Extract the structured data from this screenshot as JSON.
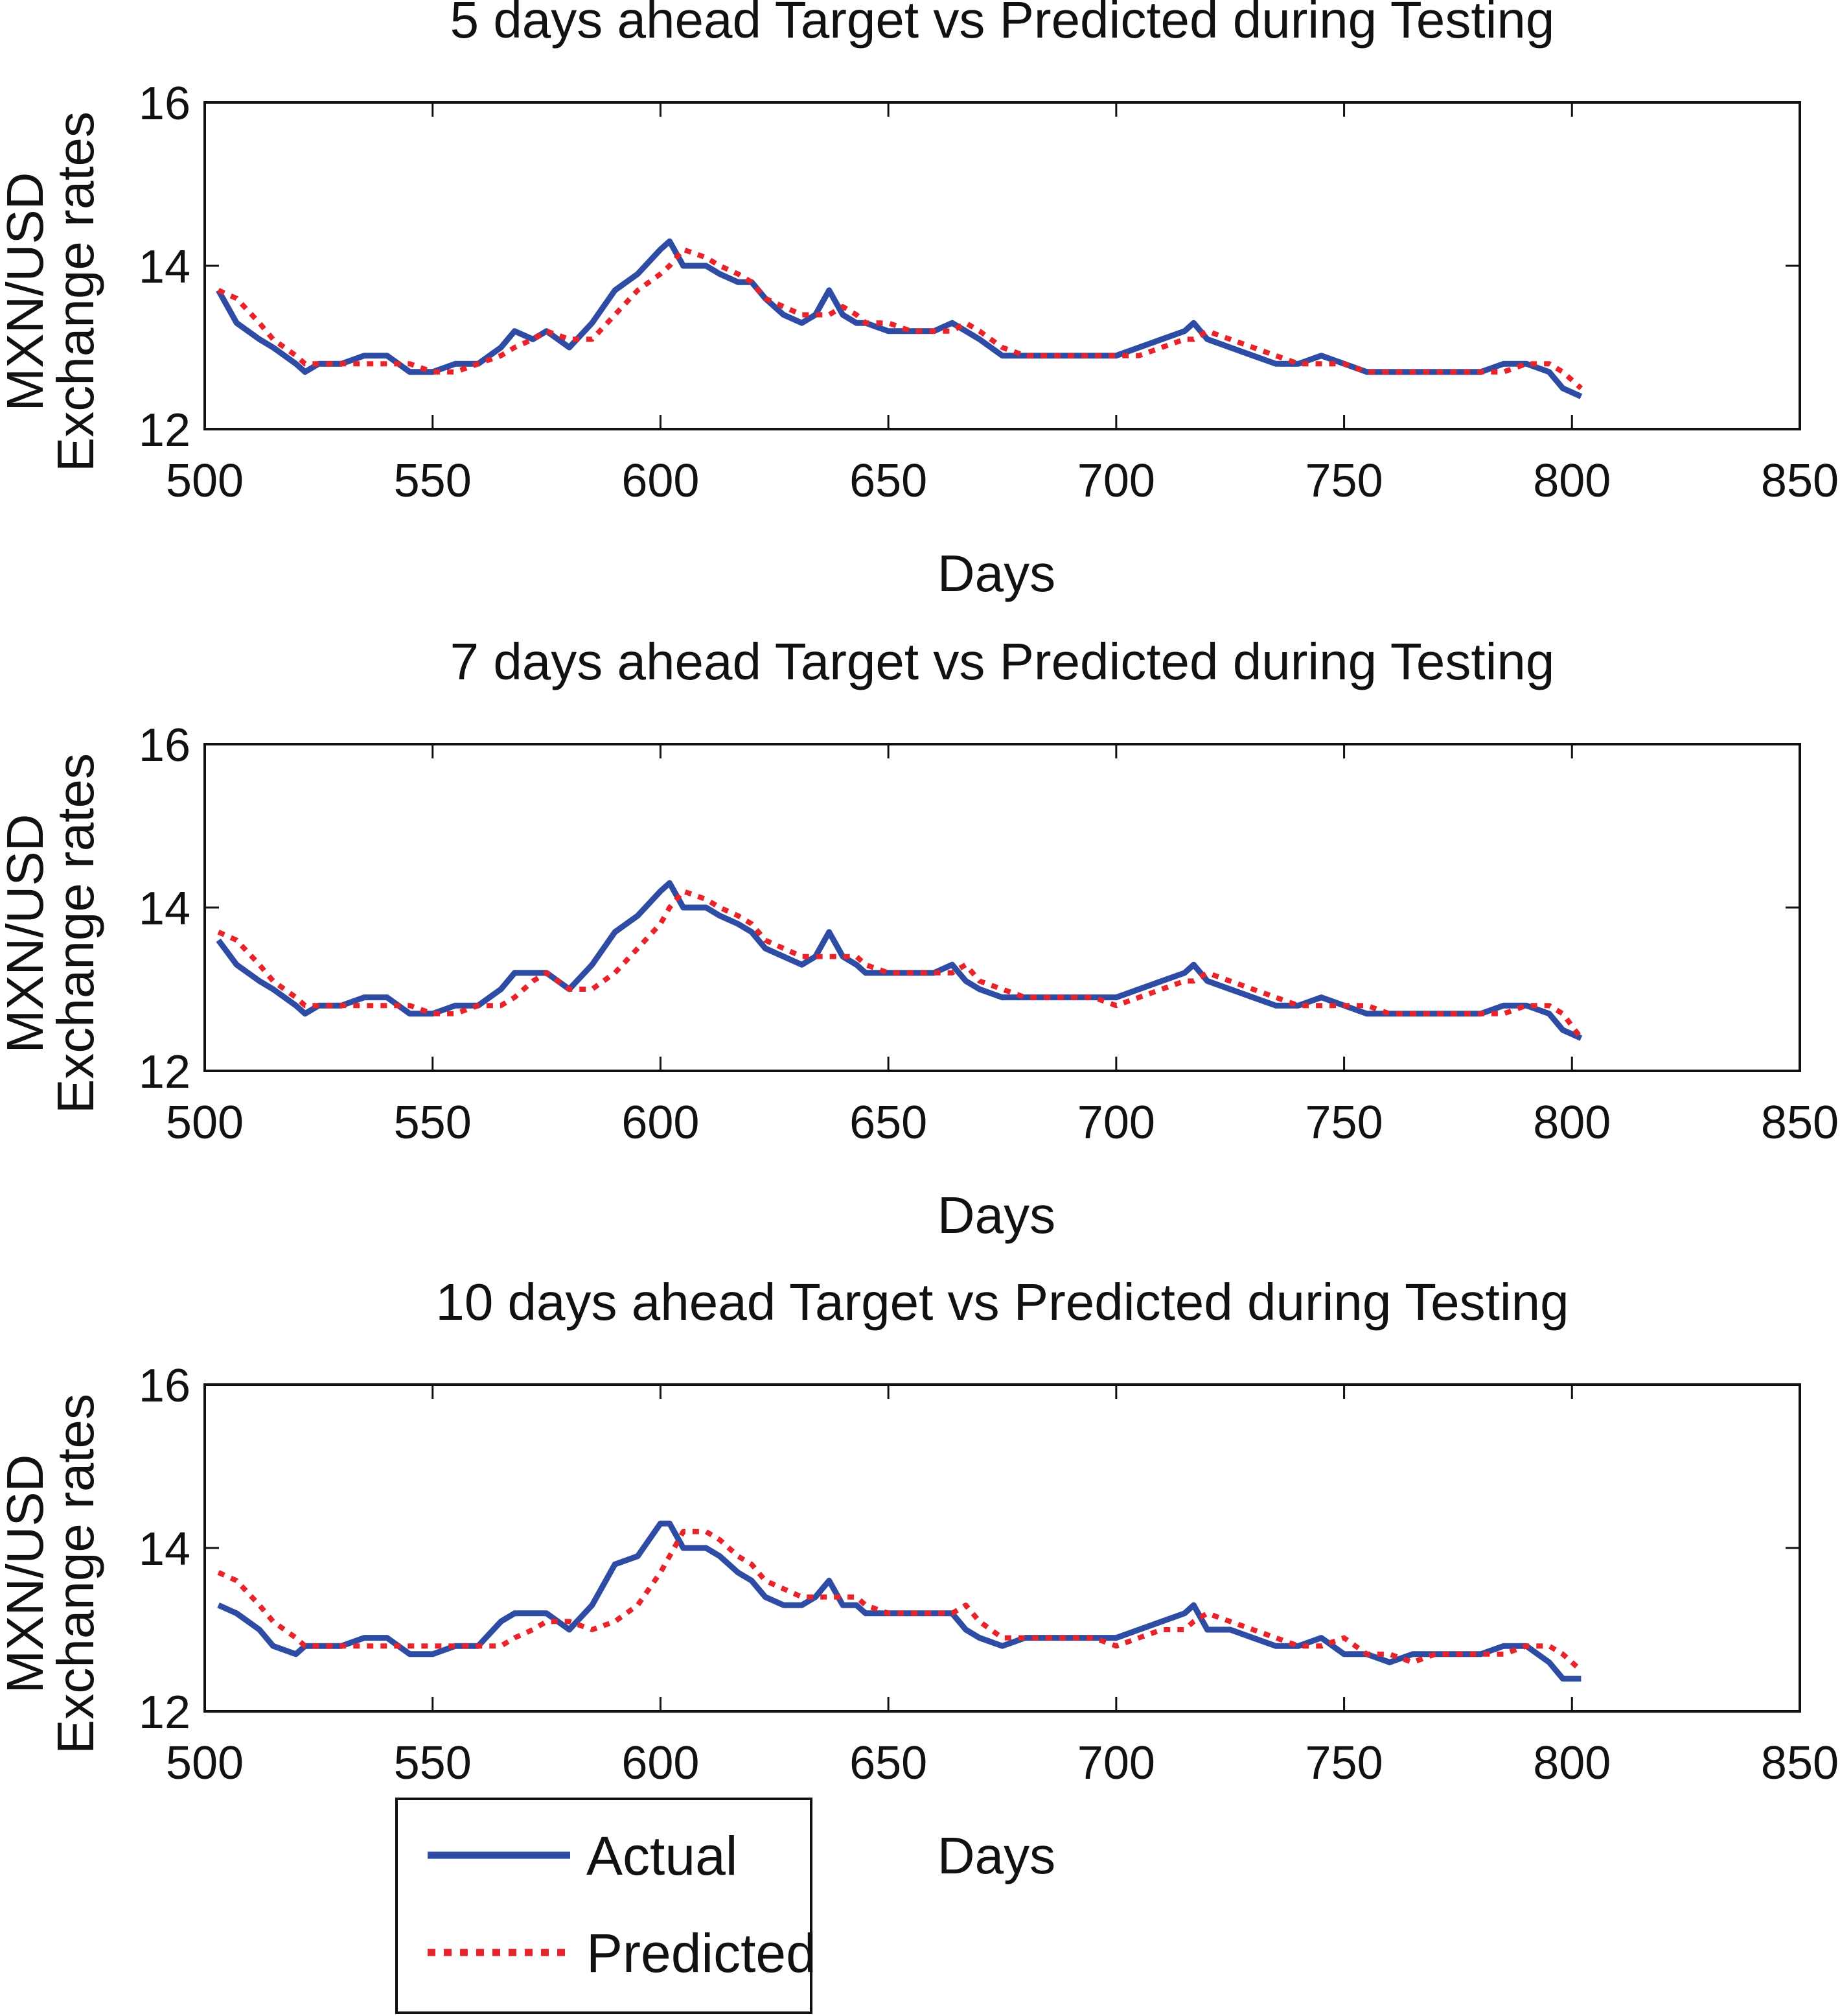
{
  "colors": {
    "actual": "#2E4CA3",
    "predicted": "#E8232A",
    "axes": "#111111"
  },
  "legend": {
    "placement": "bottom-left",
    "items": [
      {
        "label": "Actual",
        "style": "solid"
      },
      {
        "label": "Predicted",
        "style": "dotted"
      }
    ]
  },
  "chart_data": [
    {
      "type": "line",
      "title": "5 days ahead Target vs Predicted during Testing",
      "xlabel": "Days",
      "ylabel": [
        "MXN/USD",
        "Exchange rates"
      ],
      "xlim": [
        500,
        850
      ],
      "ylim": [
        12,
        16
      ],
      "xticks": [
        "500",
        "550",
        "600",
        "650",
        "700",
        "750",
        "800",
        "850"
      ],
      "yticks": [
        "12",
        "14",
        "16"
      ],
      "grid": false,
      "series": [
        {
          "name": "Actual",
          "x": [
            503,
            507,
            512,
            515,
            520,
            522,
            525,
            530,
            535,
            540,
            545,
            550,
            555,
            560,
            565,
            568,
            572,
            575,
            580,
            585,
            590,
            595,
            600,
            602,
            605,
            610,
            613,
            617,
            620,
            623,
            627,
            631,
            634,
            637,
            640,
            643,
            645,
            650,
            655,
            660,
            664,
            667,
            670,
            675,
            680,
            685,
            690,
            695,
            700,
            705,
            710,
            715,
            717,
            720,
            725,
            730,
            735,
            740,
            745,
            750,
            755,
            760,
            765,
            770,
            775,
            780,
            785,
            790,
            795,
            798,
            802
          ],
          "values": [
            13.7,
            13.3,
            13.1,
            13.0,
            12.8,
            12.7,
            12.8,
            12.8,
            12.9,
            12.9,
            12.7,
            12.7,
            12.8,
            12.8,
            13.0,
            13.2,
            13.1,
            13.2,
            13.0,
            13.3,
            13.7,
            13.9,
            14.2,
            14.3,
            14.0,
            14.0,
            13.9,
            13.8,
            13.8,
            13.6,
            13.4,
            13.3,
            13.4,
            13.7,
            13.4,
            13.3,
            13.3,
            13.2,
            13.2,
            13.2,
            13.3,
            13.2,
            13.1,
            12.9,
            12.9,
            12.9,
            12.9,
            12.9,
            12.9,
            13.0,
            13.1,
            13.2,
            13.3,
            13.1,
            13.0,
            12.9,
            12.8,
            12.8,
            12.9,
            12.8,
            12.7,
            12.7,
            12.7,
            12.7,
            12.7,
            12.7,
            12.8,
            12.8,
            12.7,
            12.5,
            12.4
          ]
        },
        {
          "name": "Predicted",
          "x": [
            503,
            507,
            512,
            515,
            520,
            522,
            525,
            530,
            535,
            540,
            545,
            550,
            555,
            560,
            565,
            568,
            572,
            575,
            580,
            585,
            590,
            595,
            600,
            602,
            605,
            610,
            613,
            617,
            620,
            623,
            627,
            631,
            634,
            637,
            640,
            643,
            645,
            650,
            655,
            660,
            664,
            667,
            670,
            675,
            680,
            685,
            690,
            695,
            700,
            705,
            710,
            715,
            717,
            720,
            725,
            730,
            735,
            740,
            745,
            750,
            755,
            760,
            765,
            770,
            775,
            780,
            785,
            790,
            795,
            798,
            802
          ],
          "values": [
            13.7,
            13.6,
            13.3,
            13.1,
            12.9,
            12.8,
            12.8,
            12.8,
            12.8,
            12.8,
            12.8,
            12.7,
            12.7,
            12.8,
            12.9,
            13.0,
            13.1,
            13.2,
            13.1,
            13.1,
            13.4,
            13.7,
            13.9,
            14.0,
            14.2,
            14.1,
            14.0,
            13.9,
            13.8,
            13.6,
            13.5,
            13.4,
            13.4,
            13.4,
            13.5,
            13.4,
            13.3,
            13.3,
            13.2,
            13.2,
            13.2,
            13.3,
            13.2,
            13.0,
            12.9,
            12.9,
            12.9,
            12.9,
            12.9,
            12.9,
            13.0,
            13.1,
            13.1,
            13.2,
            13.1,
            13.0,
            12.9,
            12.8,
            12.8,
            12.8,
            12.7,
            12.7,
            12.7,
            12.7,
            12.7,
            12.7,
            12.7,
            12.8,
            12.8,
            12.7,
            12.5
          ]
        }
      ]
    },
    {
      "type": "line",
      "title": "7 days ahead Target vs Predicted during Testing",
      "xlabel": "Days",
      "ylabel": [
        "MXN/USD",
        "Exchange rates"
      ],
      "xlim": [
        500,
        850
      ],
      "ylim": [
        12,
        16
      ],
      "xticks": [
        "500",
        "550",
        "600",
        "650",
        "700",
        "750",
        "800",
        "850"
      ],
      "yticks": [
        "12",
        "14",
        "16"
      ],
      "grid": false,
      "series": [
        {
          "name": "Actual",
          "x": [
            503,
            507,
            512,
            515,
            520,
            522,
            525,
            530,
            535,
            540,
            545,
            550,
            555,
            560,
            565,
            568,
            572,
            575,
            580,
            585,
            590,
            595,
            600,
            602,
            605,
            610,
            613,
            617,
            620,
            623,
            627,
            631,
            634,
            637,
            640,
            643,
            645,
            650,
            655,
            660,
            664,
            667,
            670,
            675,
            680,
            685,
            690,
            695,
            700,
            705,
            710,
            715,
            717,
            720,
            725,
            730,
            735,
            740,
            745,
            750,
            755,
            760,
            765,
            770,
            775,
            780,
            785,
            790,
            795,
            798,
            802
          ],
          "values": [
            13.6,
            13.3,
            13.1,
            13.0,
            12.8,
            12.7,
            12.8,
            12.8,
            12.9,
            12.9,
            12.7,
            12.7,
            12.8,
            12.8,
            13.0,
            13.2,
            13.2,
            13.2,
            13.0,
            13.3,
            13.7,
            13.9,
            14.2,
            14.3,
            14.0,
            14.0,
            13.9,
            13.8,
            13.7,
            13.5,
            13.4,
            13.3,
            13.4,
            13.7,
            13.4,
            13.3,
            13.2,
            13.2,
            13.2,
            13.2,
            13.3,
            13.1,
            13.0,
            12.9,
            12.9,
            12.9,
            12.9,
            12.9,
            12.9,
            13.0,
            13.1,
            13.2,
            13.3,
            13.1,
            13.0,
            12.9,
            12.8,
            12.8,
            12.9,
            12.8,
            12.7,
            12.7,
            12.7,
            12.7,
            12.7,
            12.7,
            12.8,
            12.8,
            12.7,
            12.5,
            12.4
          ]
        },
        {
          "name": "Predicted",
          "x": [
            503,
            507,
            512,
            515,
            520,
            522,
            525,
            530,
            535,
            540,
            545,
            550,
            555,
            560,
            565,
            568,
            572,
            575,
            580,
            585,
            590,
            595,
            600,
            602,
            605,
            610,
            613,
            617,
            620,
            623,
            627,
            631,
            634,
            637,
            640,
            643,
            645,
            650,
            655,
            660,
            664,
            667,
            670,
            675,
            680,
            685,
            690,
            695,
            700,
            705,
            710,
            715,
            717,
            720,
            725,
            730,
            735,
            740,
            745,
            750,
            755,
            760,
            765,
            770,
            775,
            780,
            785,
            790,
            795,
            798,
            802
          ],
          "values": [
            13.7,
            13.6,
            13.3,
            13.1,
            12.9,
            12.8,
            12.8,
            12.8,
            12.8,
            12.8,
            12.8,
            12.7,
            12.7,
            12.8,
            12.8,
            12.9,
            13.1,
            13.2,
            13.0,
            13.0,
            13.2,
            13.5,
            13.8,
            14.0,
            14.2,
            14.1,
            14.0,
            13.9,
            13.8,
            13.6,
            13.5,
            13.4,
            13.4,
            13.4,
            13.4,
            13.4,
            13.3,
            13.2,
            13.2,
            13.2,
            13.2,
            13.3,
            13.1,
            13.0,
            12.9,
            12.9,
            12.9,
            12.9,
            12.8,
            12.9,
            13.0,
            13.1,
            13.1,
            13.2,
            13.1,
            13.0,
            12.9,
            12.8,
            12.8,
            12.8,
            12.8,
            12.7,
            12.7,
            12.7,
            12.7,
            12.7,
            12.7,
            12.8,
            12.8,
            12.7,
            12.4
          ]
        }
      ]
    },
    {
      "type": "line",
      "title": "10 days ahead  Target vs Predicted during Testing",
      "xlabel": "Days",
      "ylabel": [
        "MXN/USD",
        "Exchange rates"
      ],
      "xlim": [
        500,
        850
      ],
      "ylim": [
        12,
        16
      ],
      "xticks": [
        "500",
        "550",
        "600",
        "650",
        "700",
        "750",
        "800",
        "850"
      ],
      "yticks": [
        "12",
        "14",
        "16"
      ],
      "grid": false,
      "series": [
        {
          "name": "Actual",
          "x": [
            503,
            507,
            512,
            515,
            520,
            522,
            525,
            530,
            535,
            540,
            545,
            550,
            555,
            560,
            565,
            568,
            572,
            575,
            580,
            585,
            590,
            595,
            600,
            602,
            605,
            610,
            613,
            617,
            620,
            623,
            627,
            631,
            634,
            637,
            640,
            643,
            645,
            650,
            655,
            660,
            664,
            667,
            670,
            675,
            680,
            685,
            690,
            695,
            700,
            705,
            710,
            715,
            717,
            720,
            725,
            730,
            735,
            740,
            745,
            750,
            755,
            760,
            765,
            770,
            775,
            780,
            785,
            790,
            795,
            798,
            802
          ],
          "values": [
            13.3,
            13.2,
            13.0,
            12.8,
            12.7,
            12.8,
            12.8,
            12.8,
            12.9,
            12.9,
            12.7,
            12.7,
            12.8,
            12.8,
            13.1,
            13.2,
            13.2,
            13.2,
            13.0,
            13.3,
            13.8,
            13.9,
            14.3,
            14.3,
            14.0,
            14.0,
            13.9,
            13.7,
            13.6,
            13.4,
            13.3,
            13.3,
            13.4,
            13.6,
            13.3,
            13.3,
            13.2,
            13.2,
            13.2,
            13.2,
            13.2,
            13.0,
            12.9,
            12.8,
            12.9,
            12.9,
            12.9,
            12.9,
            12.9,
            13.0,
            13.1,
            13.2,
            13.3,
            13.0,
            13.0,
            12.9,
            12.8,
            12.8,
            12.9,
            12.7,
            12.7,
            12.6,
            12.7,
            12.7,
            12.7,
            12.7,
            12.8,
            12.8,
            12.6,
            12.4,
            12.4
          ]
        },
        {
          "name": "Predicted",
          "x": [
            503,
            507,
            512,
            515,
            520,
            522,
            525,
            530,
            535,
            540,
            545,
            550,
            555,
            560,
            565,
            568,
            572,
            575,
            580,
            585,
            590,
            595,
            600,
            602,
            605,
            610,
            613,
            617,
            620,
            623,
            627,
            631,
            634,
            637,
            640,
            643,
            645,
            650,
            655,
            660,
            664,
            667,
            670,
            675,
            680,
            685,
            690,
            695,
            700,
            705,
            710,
            715,
            717,
            720,
            725,
            730,
            735,
            740,
            745,
            750,
            755,
            760,
            765,
            770,
            775,
            780,
            785,
            790,
            795,
            798,
            802
          ],
          "values": [
            13.7,
            13.6,
            13.3,
            13.1,
            12.9,
            12.8,
            12.8,
            12.8,
            12.8,
            12.8,
            12.8,
            12.8,
            12.8,
            12.8,
            12.8,
            12.9,
            13.0,
            13.1,
            13.1,
            13.0,
            13.1,
            13.3,
            13.7,
            13.9,
            14.2,
            14.2,
            14.1,
            13.9,
            13.8,
            13.6,
            13.5,
            13.4,
            13.4,
            13.4,
            13.4,
            13.4,
            13.3,
            13.2,
            13.2,
            13.2,
            13.2,
            13.3,
            13.1,
            12.9,
            12.9,
            12.9,
            12.9,
            12.9,
            12.8,
            12.9,
            13.0,
            13.0,
            13.1,
            13.2,
            13.1,
            13.0,
            12.9,
            12.8,
            12.8,
            12.9,
            12.7,
            12.7,
            12.6,
            12.7,
            12.7,
            12.7,
            12.7,
            12.8,
            12.8,
            12.7,
            12.5
          ]
        }
      ]
    }
  ]
}
